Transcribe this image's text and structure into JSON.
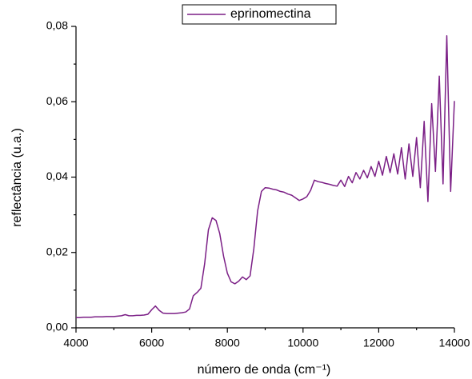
{
  "chart_data": {
    "type": "line",
    "xlabel": "número de onda  (cm⁻¹)",
    "ylabel": "reflectância (u.a.)",
    "legend": "top",
    "xlim": [
      4000,
      14000
    ],
    "xticks": [
      4000,
      6000,
      8000,
      10000,
      12000,
      14000
    ],
    "ylim": [
      0,
      0.08
    ],
    "yticks": [
      {
        "value": 0,
        "label": "0,00"
      },
      {
        "value": 0.02,
        "label": "0,02"
      },
      {
        "value": 0.04,
        "label": "0,04"
      },
      {
        "value": 0.06,
        "label": "0,06"
      },
      {
        "value": 0.08,
        "label": "0,08"
      }
    ],
    "x": [
      4000,
      4100,
      4200,
      4300,
      4400,
      4500,
      4600,
      4700,
      4800,
      4900,
      5000,
      5100,
      5200,
      5300,
      5400,
      5500,
      5600,
      5700,
      5800,
      5900,
      6000,
      6100,
      6200,
      6300,
      6400,
      6500,
      6600,
      6700,
      6800,
      6900,
      7000,
      7100,
      7200,
      7300,
      7400,
      7500,
      7600,
      7700,
      7800,
      7900,
      8000,
      8100,
      8200,
      8300,
      8400,
      8500,
      8600,
      8700,
      8800,
      8900,
      9000,
      9100,
      9200,
      9300,
      9400,
      9500,
      9600,
      9700,
      9800,
      9900,
      10000,
      10100,
      10200,
      10300,
      10400,
      10500,
      10600,
      10700,
      10800,
      10900,
      11000,
      11100,
      11200,
      11300,
      11400,
      11500,
      11600,
      11700,
      11800,
      11900,
      12000,
      12100,
      12200,
      12300,
      12400,
      12500,
      12600,
      12700,
      12800,
      12900,
      13000,
      13100,
      13200,
      13300,
      13400,
      13500,
      13600,
      13700,
      13800,
      13900,
      14000
    ],
    "series": [
      {
        "name": "eprinomectina",
        "color": "#7b1f86",
        "values": [
          0.0027,
          0.0027,
          0.0028,
          0.0028,
          0.0028,
          0.0029,
          0.0029,
          0.0029,
          0.003,
          0.003,
          0.003,
          0.0031,
          0.0032,
          0.0035,
          0.0032,
          0.0032,
          0.0033,
          0.0033,
          0.0034,
          0.0036,
          0.0048,
          0.0058,
          0.0046,
          0.0039,
          0.0038,
          0.0038,
          0.0038,
          0.0039,
          0.004,
          0.0042,
          0.005,
          0.0085,
          0.0094,
          0.0105,
          0.017,
          0.026,
          0.0292,
          0.0285,
          0.025,
          0.019,
          0.0145,
          0.0122,
          0.0117,
          0.0124,
          0.0135,
          0.0128,
          0.0138,
          0.021,
          0.031,
          0.0362,
          0.0372,
          0.0371,
          0.0368,
          0.0366,
          0.0362,
          0.036,
          0.0355,
          0.0352,
          0.0345,
          0.0338,
          0.0342,
          0.0348,
          0.0365,
          0.0392,
          0.0388,
          0.0386,
          0.0383,
          0.0381,
          0.0378,
          0.0376,
          0.0392,
          0.0375,
          0.0402,
          0.0385,
          0.0412,
          0.0395,
          0.0418,
          0.0398,
          0.0428,
          0.0402,
          0.0442,
          0.0405,
          0.0455,
          0.0412,
          0.0462,
          0.0408,
          0.0478,
          0.0395,
          0.0488,
          0.0402,
          0.0505,
          0.0372,
          0.0548,
          0.0335,
          0.0595,
          0.0415,
          0.0668,
          0.0382,
          0.0775,
          0.0362,
          0.0602
        ]
      }
    ]
  }
}
